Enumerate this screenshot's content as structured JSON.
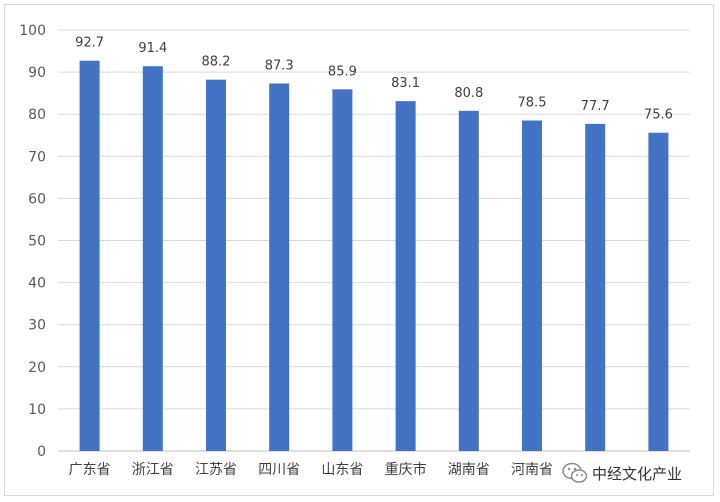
{
  "chart_data": {
    "type": "bar",
    "title": "",
    "xlabel": "",
    "ylabel": "",
    "categories": [
      "广东省",
      "浙江省",
      "江苏省",
      "四川省",
      "山东省",
      "重庆市",
      "湖南省",
      "河南省",
      "",
      ""
    ],
    "values": [
      92.7,
      91.4,
      88.2,
      87.3,
      85.9,
      83.1,
      80.8,
      78.5,
      77.7,
      75.6
    ],
    "data_labels": [
      "92.7",
      "91.4",
      "88.2",
      "87.3",
      "85.9",
      "83.1",
      "80.8",
      "78.5",
      "77.7",
      "75.6"
    ],
    "ylim": [
      0,
      100
    ],
    "yticks": [
      0,
      10,
      20,
      30,
      40,
      50,
      60,
      70,
      80,
      90,
      100
    ],
    "grid": true,
    "legend": "none",
    "bar_color": "#4472C4"
  },
  "watermark": {
    "text": "中经文化产业",
    "icon": "wechat-icon"
  }
}
